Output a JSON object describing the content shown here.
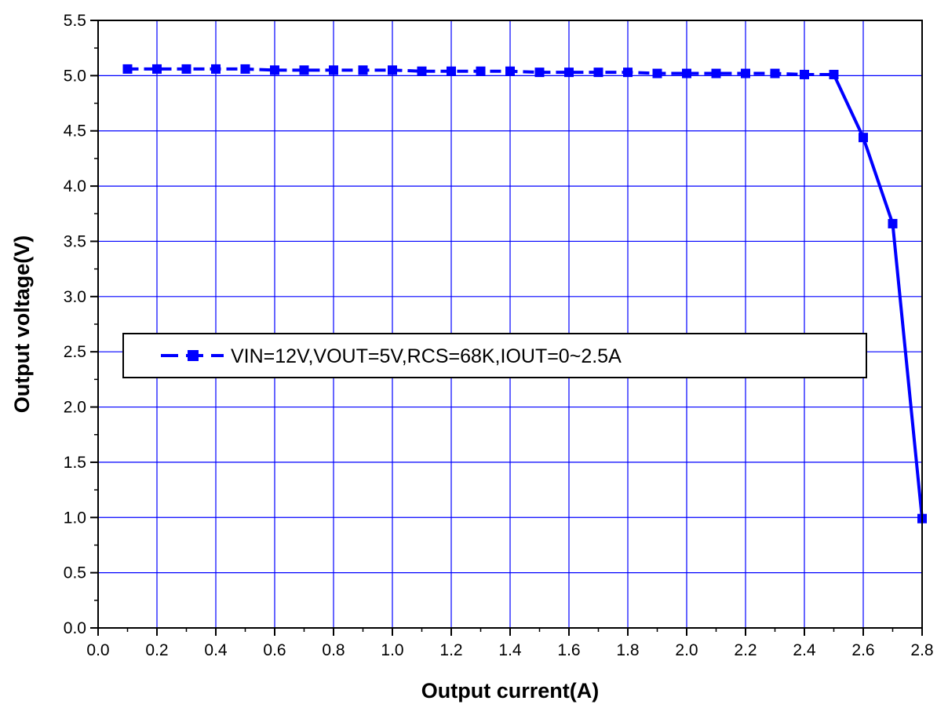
{
  "chart_data": {
    "type": "line",
    "xlabel": "Output current(A)",
    "ylabel": "Output voltage(V)",
    "xlim": [
      0.0,
      2.8
    ],
    "ylim": [
      0.0,
      5.5
    ],
    "x_ticks": [
      "0.0",
      "0.2",
      "0.4",
      "0.6",
      "0.8",
      "1.0",
      "1.2",
      "1.4",
      "1.6",
      "1.8",
      "2.0",
      "2.2",
      "2.4",
      "2.6",
      "2.8"
    ],
    "y_ticks": [
      "0.0",
      "0.5",
      "1.0",
      "1.5",
      "2.0",
      "2.5",
      "3.0",
      "3.5",
      "4.0",
      "4.5",
      "5.0",
      "5.5"
    ],
    "grid": true,
    "legend_placement": "center-left",
    "series": [
      {
        "name": "VIN=12V,VOUT=5V,RCS=68K,IOUT=0~2.5A",
        "color": "#0000ff",
        "marker": "square",
        "line_style": "dashed",
        "points": [
          [
            0.1,
            5.06
          ],
          [
            0.2,
            5.06
          ],
          [
            0.3,
            5.06
          ],
          [
            0.4,
            5.06
          ],
          [
            0.5,
            5.06
          ],
          [
            0.6,
            5.05
          ],
          [
            0.7,
            5.05
          ],
          [
            0.8,
            5.05
          ],
          [
            0.9,
            5.05
          ],
          [
            1.0,
            5.05
          ],
          [
            1.1,
            5.04
          ],
          [
            1.2,
            5.04
          ],
          [
            1.3,
            5.04
          ],
          [
            1.4,
            5.04
          ],
          [
            1.5,
            5.03
          ],
          [
            1.6,
            5.03
          ],
          [
            1.7,
            5.03
          ],
          [
            1.8,
            5.03
          ],
          [
            1.9,
            5.02
          ],
          [
            2.0,
            5.02
          ],
          [
            2.1,
            5.02
          ],
          [
            2.2,
            5.02
          ],
          [
            2.3,
            5.02
          ],
          [
            2.4,
            5.01
          ],
          [
            2.5,
            5.01
          ],
          [
            2.6,
            4.44
          ],
          [
            2.7,
            3.66
          ],
          [
            2.8,
            0.99
          ]
        ]
      }
    ]
  }
}
